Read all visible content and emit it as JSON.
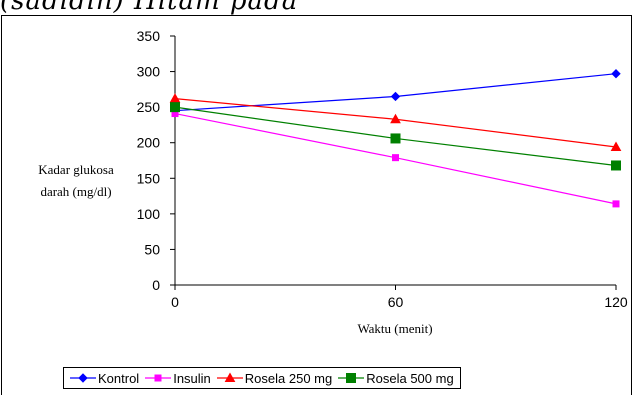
{
  "chart_data": {
    "type": "line",
    "x": [
      0,
      60,
      120
    ],
    "xlabel": "Waktu (menit)",
    "ylabel": "Kadar glukosa darah (mg/dl)",
    "ylabel_lines": [
      "Kadar glukosa",
      "darah (mg/dl)"
    ],
    "xlim": [
      0,
      120
    ],
    "ylim": [
      0,
      350
    ],
    "x_ticks": [
      0,
      60,
      120
    ],
    "y_ticks": [
      0,
      50,
      100,
      150,
      200,
      250,
      300,
      350
    ],
    "grid": false,
    "legend_position": "bottom",
    "series": [
      {
        "name": "Kontrol",
        "values": [
          245,
          265,
          297
        ],
        "color": "#0000ff",
        "marker": "diamond"
      },
      {
        "name": "Insulin",
        "values": [
          241,
          179,
          114
        ],
        "color": "#ff00ff",
        "marker": "square"
      },
      {
        "name": "Rosela 250 mg",
        "values": [
          262,
          233,
          194
        ],
        "color": "#ff0000",
        "marker": "triangle"
      },
      {
        "name": "Rosela 500 mg",
        "values": [
          250,
          206,
          168
        ],
        "color": "#008000",
        "marker": "square"
      }
    ]
  }
}
